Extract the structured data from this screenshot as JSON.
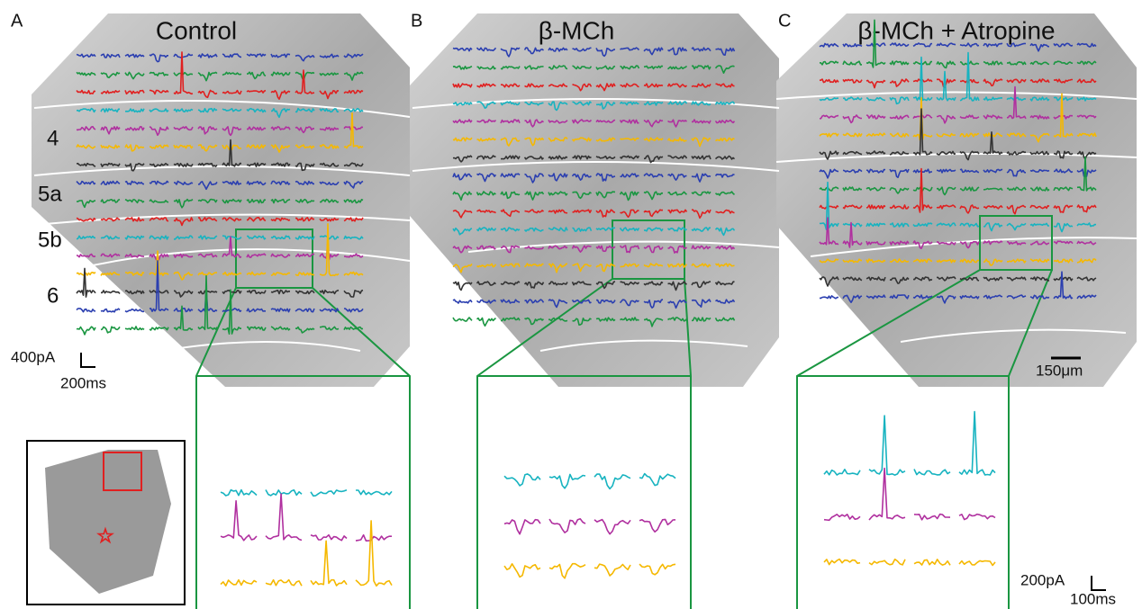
{
  "panels": [
    {
      "label": "A",
      "title": "Control"
    },
    {
      "label": "B",
      "title": "β-MCh"
    },
    {
      "label": "C",
      "title": "β-MCh + Atropine"
    }
  ],
  "layers": [
    "4",
    "5a",
    "5b",
    "6"
  ],
  "scale_bars": {
    "main_current": "400pA",
    "main_time": "200ms",
    "distance": "150μm",
    "zoom_current": "200pA",
    "zoom_time": "100ms"
  }
}
